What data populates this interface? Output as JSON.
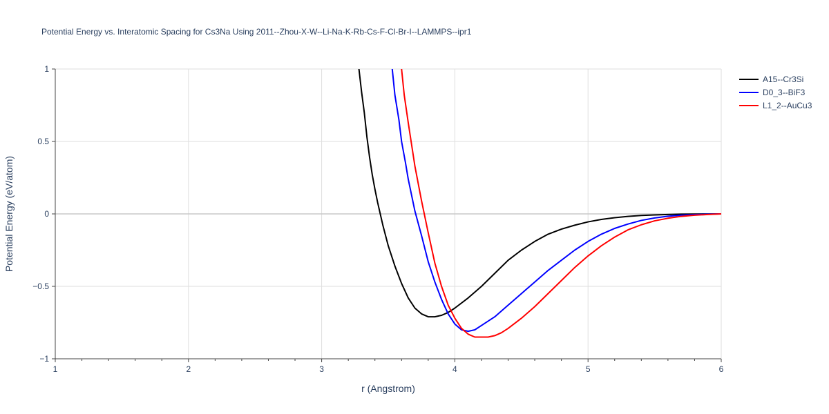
{
  "chart_data": {
    "type": "line",
    "title": "Potential Energy vs. Interatomic Spacing for Cs3Na Using 2011--Zhou-X-W--Li-Na-K-Rb-Cs-F-Cl-Br-I--LAMMPS--ipr1",
    "xlabel": "r (Angstrom)",
    "ylabel": "Potential Energy (eV/atom)",
    "xlim": [
      1,
      6
    ],
    "ylim": [
      -1,
      1
    ],
    "x_ticks": [
      1,
      2,
      3,
      4,
      5,
      6
    ],
    "y_ticks": [
      -1,
      -0.5,
      0,
      0.5,
      1
    ],
    "y_tick_labels": [
      "−1",
      "−0.5",
      "0",
      "0.5",
      "1"
    ],
    "grid": true,
    "legend_position": "top-right",
    "series": [
      {
        "name": "A15--Cr3Si",
        "color": "#000000",
        "x": [
          3.28,
          3.3,
          3.32,
          3.34,
          3.36,
          3.38,
          3.4,
          3.42,
          3.44,
          3.46,
          3.48,
          3.5,
          3.55,
          3.6,
          3.65,
          3.7,
          3.75,
          3.8,
          3.85,
          3.9,
          3.95,
          4.0,
          4.1,
          4.2,
          4.3,
          4.4,
          4.5,
          4.6,
          4.7,
          4.8,
          4.9,
          5.0,
          5.1,
          5.2,
          5.3,
          5.4,
          5.5,
          5.6,
          5.7,
          5.8,
          5.9,
          6.0
        ],
        "y": [
          1.0,
          0.84,
          0.7,
          0.53,
          0.39,
          0.27,
          0.17,
          0.08,
          0.0,
          -0.08,
          -0.15,
          -0.22,
          -0.36,
          -0.48,
          -0.58,
          -0.65,
          -0.69,
          -0.71,
          -0.71,
          -0.7,
          -0.68,
          -0.65,
          -0.58,
          -0.5,
          -0.41,
          -0.32,
          -0.25,
          -0.19,
          -0.14,
          -0.105,
          -0.078,
          -0.055,
          -0.038,
          -0.026,
          -0.017,
          -0.011,
          -0.007,
          -0.004,
          -0.002,
          -0.001,
          -0.0005,
          0.0
        ]
      },
      {
        "name": "D0_3--BiF3",
        "color": "#0000ff",
        "x": [
          3.53,
          3.55,
          3.58,
          3.6,
          3.63,
          3.65,
          3.7,
          3.75,
          3.8,
          3.85,
          3.9,
          3.95,
          4.0,
          4.05,
          4.1,
          4.15,
          4.2,
          4.3,
          4.4,
          4.5,
          4.6,
          4.7,
          4.8,
          4.9,
          5.0,
          5.1,
          5.2,
          5.3,
          5.4,
          5.5,
          5.6,
          5.7,
          5.8,
          5.9,
          6.0
        ],
        "y": [
          1.0,
          0.82,
          0.65,
          0.5,
          0.35,
          0.24,
          0.02,
          -0.15,
          -0.33,
          -0.47,
          -0.59,
          -0.69,
          -0.76,
          -0.8,
          -0.81,
          -0.8,
          -0.77,
          -0.71,
          -0.63,
          -0.55,
          -0.47,
          -0.39,
          -0.32,
          -0.25,
          -0.19,
          -0.14,
          -0.1,
          -0.07,
          -0.045,
          -0.028,
          -0.016,
          -0.009,
          -0.005,
          -0.002,
          0.0
        ]
      },
      {
        "name": "L1_2--AuCu3",
        "color": "#ff0000",
        "x": [
          3.6,
          3.62,
          3.65,
          3.68,
          3.7,
          3.75,
          3.8,
          3.85,
          3.9,
          3.95,
          4.0,
          4.05,
          4.1,
          4.15,
          4.2,
          4.25,
          4.3,
          4.35,
          4.4,
          4.5,
          4.6,
          4.7,
          4.8,
          4.9,
          5.0,
          5.1,
          5.2,
          5.3,
          5.4,
          5.5,
          5.6,
          5.7,
          5.8,
          5.9,
          6.0
        ],
        "y": [
          1.0,
          0.82,
          0.63,
          0.45,
          0.33,
          0.09,
          -0.13,
          -0.34,
          -0.5,
          -0.63,
          -0.72,
          -0.79,
          -0.83,
          -0.85,
          -0.85,
          -0.85,
          -0.84,
          -0.82,
          -0.79,
          -0.72,
          -0.64,
          -0.55,
          -0.46,
          -0.37,
          -0.29,
          -0.22,
          -0.16,
          -0.11,
          -0.075,
          -0.048,
          -0.03,
          -0.017,
          -0.009,
          -0.004,
          0.0
        ]
      }
    ]
  }
}
